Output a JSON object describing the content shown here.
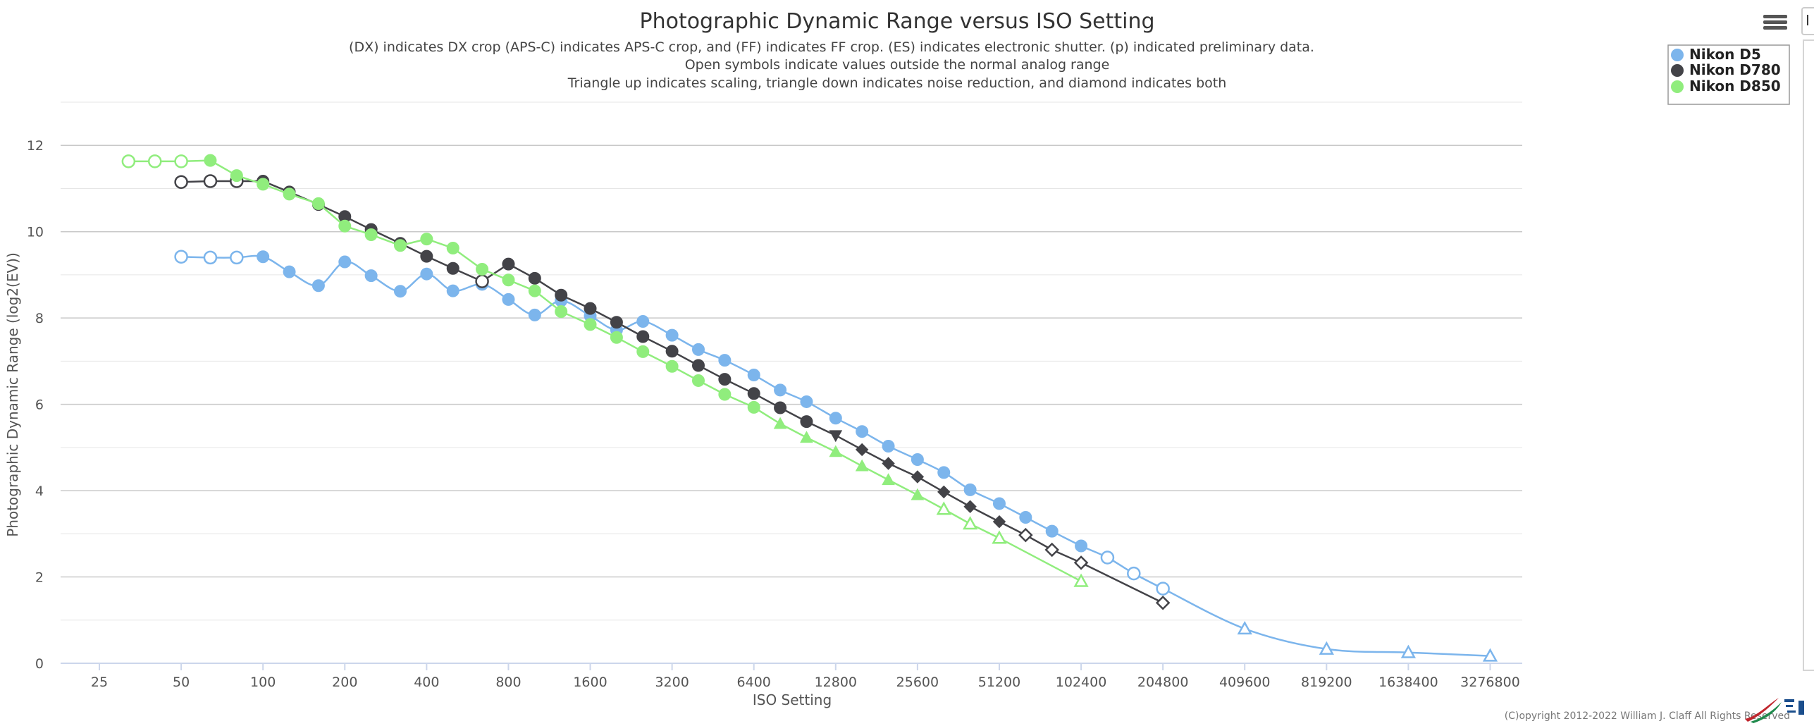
{
  "colors": {
    "d5": "#7cb5ec",
    "d780": "#434348",
    "d850": "#90ed7d"
  },
  "credit": "(C)opyright 2012-2022 William J. Claff All Rights Reserved",
  "side_panel": {
    "tab_text": "I"
  },
  "chart_data": {
    "type": "line",
    "title": "Photographic Dynamic Range versus ISO Setting",
    "subtitle": [
      "(DX) indicates DX crop (APS-C) indicates APS-C crop, and (FF) indicates FF crop. (ES) indicates electronic shutter. (p) indicated preliminary data.",
      "Open symbols indicate values outside the normal analog range",
      "Triangle up indicates scaling, triangle down indicates noise reduction, and diamond indicates both"
    ],
    "xlabel": "ISO Setting",
    "ylabel": "Photographic Dynamic Range (log2(EV))",
    "x_scale": "log2",
    "xlim": [
      18,
      4300000
    ],
    "ylim": [
      0,
      13
    ],
    "x_ticks": [
      25,
      50,
      100,
      200,
      400,
      800,
      1600,
      3200,
      6400,
      12800,
      25600,
      51200,
      102400,
      204800,
      409600,
      819200,
      1638400,
      3276800
    ],
    "y_ticks": [
      0,
      2,
      4,
      6,
      8,
      10,
      12
    ],
    "legend": {
      "position": "top-right",
      "entries": [
        "Nikon D5",
        "Nikon D780",
        "Nikon D850"
      ]
    },
    "series": [
      {
        "name": "Nikon D5",
        "color_key": "d5",
        "smooth": true,
        "points": [
          {
            "x": 50,
            "y": 9.42,
            "s": "circle-open"
          },
          {
            "x": 64,
            "y": 9.4,
            "s": "circle-open"
          },
          {
            "x": 80,
            "y": 9.4,
            "s": "circle-open"
          },
          {
            "x": 100,
            "y": 9.42,
            "s": "circle"
          },
          {
            "x": 125,
            "y": 9.07,
            "s": "circle"
          },
          {
            "x": 160,
            "y": 8.75,
            "s": "circle"
          },
          {
            "x": 200,
            "y": 9.3,
            "s": "circle"
          },
          {
            "x": 250,
            "y": 8.98,
            "s": "circle"
          },
          {
            "x": 320,
            "y": 8.62,
            "s": "circle"
          },
          {
            "x": 400,
            "y": 9.02,
            "s": "circle"
          },
          {
            "x": 500,
            "y": 8.63,
            "s": "circle"
          },
          {
            "x": 640,
            "y": 8.78,
            "s": "circle"
          },
          {
            "x": 800,
            "y": 8.43,
            "s": "circle"
          },
          {
            "x": 1000,
            "y": 8.07,
            "s": "circle"
          },
          {
            "x": 1250,
            "y": 8.4,
            "s": "circle"
          },
          {
            "x": 1600,
            "y": 8.05,
            "s": "circle"
          },
          {
            "x": 2000,
            "y": 7.72,
            "s": "circle"
          },
          {
            "x": 2500,
            "y": 7.92,
            "s": "circle"
          },
          {
            "x": 3200,
            "y": 7.6,
            "s": "circle"
          },
          {
            "x": 4000,
            "y": 7.27,
            "s": "circle"
          },
          {
            "x": 5000,
            "y": 7.02,
            "s": "circle"
          },
          {
            "x": 6400,
            "y": 6.68,
            "s": "circle"
          },
          {
            "x": 8000,
            "y": 6.33,
            "s": "circle"
          },
          {
            "x": 10000,
            "y": 6.06,
            "s": "circle"
          },
          {
            "x": 12800,
            "y": 5.68,
            "s": "circle"
          },
          {
            "x": 16000,
            "y": 5.37,
            "s": "circle"
          },
          {
            "x": 20000,
            "y": 5.03,
            "s": "circle"
          },
          {
            "x": 25600,
            "y": 4.72,
            "s": "circle"
          },
          {
            "x": 32000,
            "y": 4.42,
            "s": "circle"
          },
          {
            "x": 40000,
            "y": 4.02,
            "s": "circle"
          },
          {
            "x": 51200,
            "y": 3.7,
            "s": "circle"
          },
          {
            "x": 64000,
            "y": 3.38,
            "s": "circle"
          },
          {
            "x": 80000,
            "y": 3.06,
            "s": "circle"
          },
          {
            "x": 102400,
            "y": 2.72,
            "s": "circle"
          },
          {
            "x": 128000,
            "y": 2.45,
            "s": "circle-open"
          },
          {
            "x": 160000,
            "y": 2.08,
            "s": "circle-open"
          },
          {
            "x": 204800,
            "y": 1.73,
            "s": "circle-open"
          },
          {
            "x": 409600,
            "y": 0.8,
            "s": "triangle-up-open"
          },
          {
            "x": 819200,
            "y": 0.33,
            "s": "triangle-up-open"
          },
          {
            "x": 1638400,
            "y": 0.25,
            "s": "triangle-up-open"
          },
          {
            "x": 3276800,
            "y": 0.17,
            "s": "triangle-up-open"
          }
        ]
      },
      {
        "name": "Nikon D780",
        "color_key": "d780",
        "smooth": false,
        "points": [
          {
            "x": 50,
            "y": 11.15,
            "s": "circle-open"
          },
          {
            "x": 64,
            "y": 11.17,
            "s": "circle-open"
          },
          {
            "x": 80,
            "y": 11.17,
            "s": "circle-open"
          },
          {
            "x": 100,
            "y": 11.17,
            "s": "circle"
          },
          {
            "x": 125,
            "y": 10.92,
            "s": "circle"
          },
          {
            "x": 160,
            "y": 10.63,
            "s": "circle"
          },
          {
            "x": 200,
            "y": 10.35,
            "s": "circle"
          },
          {
            "x": 250,
            "y": 10.05,
            "s": "circle"
          },
          {
            "x": 320,
            "y": 9.73,
            "s": "circle"
          },
          {
            "x": 400,
            "y": 9.43,
            "s": "circle"
          },
          {
            "x": 500,
            "y": 9.15,
            "s": "circle"
          },
          {
            "x": 640,
            "y": 8.85,
            "s": "circle-open"
          },
          {
            "x": 800,
            "y": 9.25,
            "s": "circle"
          },
          {
            "x": 1000,
            "y": 8.92,
            "s": "circle"
          },
          {
            "x": 1250,
            "y": 8.53,
            "s": "circle"
          },
          {
            "x": 1600,
            "y": 8.22,
            "s": "circle"
          },
          {
            "x": 2000,
            "y": 7.9,
            "s": "circle"
          },
          {
            "x": 2500,
            "y": 7.57,
            "s": "circle"
          },
          {
            "x": 3200,
            "y": 7.23,
            "s": "circle"
          },
          {
            "x": 4000,
            "y": 6.9,
            "s": "circle"
          },
          {
            "x": 5000,
            "y": 6.58,
            "s": "circle"
          },
          {
            "x": 6400,
            "y": 6.25,
            "s": "circle"
          },
          {
            "x": 8000,
            "y": 5.92,
            "s": "circle"
          },
          {
            "x": 10000,
            "y": 5.6,
            "s": "circle"
          },
          {
            "x": 12800,
            "y": 5.28,
            "s": "triangle-down"
          },
          {
            "x": 16000,
            "y": 4.95,
            "s": "diamond"
          },
          {
            "x": 20000,
            "y": 4.63,
            "s": "diamond"
          },
          {
            "x": 25600,
            "y": 4.32,
            "s": "diamond"
          },
          {
            "x": 32000,
            "y": 3.97,
            "s": "diamond"
          },
          {
            "x": 40000,
            "y": 3.63,
            "s": "diamond"
          },
          {
            "x": 51200,
            "y": 3.28,
            "s": "diamond"
          },
          {
            "x": 64000,
            "y": 2.97,
            "s": "diamond-open"
          },
          {
            "x": 80000,
            "y": 2.63,
            "s": "diamond-open"
          },
          {
            "x": 102400,
            "y": 2.33,
            "s": "diamond-open"
          },
          {
            "x": 204800,
            "y": 1.4,
            "s": "diamond-open"
          }
        ]
      },
      {
        "name": "Nikon D850",
        "color_key": "d850",
        "smooth": false,
        "points": [
          {
            "x": 32,
            "y": 11.63,
            "s": "circle-open"
          },
          {
            "x": 40,
            "y": 11.63,
            "s": "circle-open"
          },
          {
            "x": 50,
            "y": 11.63,
            "s": "circle-open"
          },
          {
            "x": 64,
            "y": 11.65,
            "s": "circle"
          },
          {
            "x": 80,
            "y": 11.3,
            "s": "circle"
          },
          {
            "x": 100,
            "y": 11.1,
            "s": "circle"
          },
          {
            "x": 125,
            "y": 10.87,
            "s": "circle"
          },
          {
            "x": 160,
            "y": 10.65,
            "s": "circle"
          },
          {
            "x": 200,
            "y": 10.13,
            "s": "circle"
          },
          {
            "x": 250,
            "y": 9.93,
            "s": "circle"
          },
          {
            "x": 320,
            "y": 9.68,
            "s": "circle"
          },
          {
            "x": 400,
            "y": 9.83,
            "s": "circle"
          },
          {
            "x": 500,
            "y": 9.62,
            "s": "circle"
          },
          {
            "x": 640,
            "y": 9.13,
            "s": "circle"
          },
          {
            "x": 800,
            "y": 8.88,
            "s": "circle"
          },
          {
            "x": 1000,
            "y": 8.63,
            "s": "circle"
          },
          {
            "x": 1250,
            "y": 8.15,
            "s": "circle"
          },
          {
            "x": 1600,
            "y": 7.85,
            "s": "circle"
          },
          {
            "x": 2000,
            "y": 7.55,
            "s": "circle"
          },
          {
            "x": 2500,
            "y": 7.22,
            "s": "circle"
          },
          {
            "x": 3200,
            "y": 6.88,
            "s": "circle"
          },
          {
            "x": 4000,
            "y": 6.55,
            "s": "circle"
          },
          {
            "x": 5000,
            "y": 6.23,
            "s": "circle"
          },
          {
            "x": 6400,
            "y": 5.93,
            "s": "circle"
          },
          {
            "x": 8000,
            "y": 5.55,
            "s": "triangle-up"
          },
          {
            "x": 10000,
            "y": 5.23,
            "s": "triangle-up"
          },
          {
            "x": 12800,
            "y": 4.9,
            "s": "triangle-up"
          },
          {
            "x": 16000,
            "y": 4.57,
            "s": "triangle-up"
          },
          {
            "x": 20000,
            "y": 4.25,
            "s": "triangle-up"
          },
          {
            "x": 25600,
            "y": 3.9,
            "s": "triangle-up"
          },
          {
            "x": 32000,
            "y": 3.57,
            "s": "triangle-up-open"
          },
          {
            "x": 40000,
            "y": 3.23,
            "s": "triangle-up-open"
          },
          {
            "x": 51200,
            "y": 2.9,
            "s": "triangle-up-open"
          },
          {
            "x": 102400,
            "y": 1.9,
            "s": "triangle-up-open"
          }
        ]
      }
    ]
  }
}
